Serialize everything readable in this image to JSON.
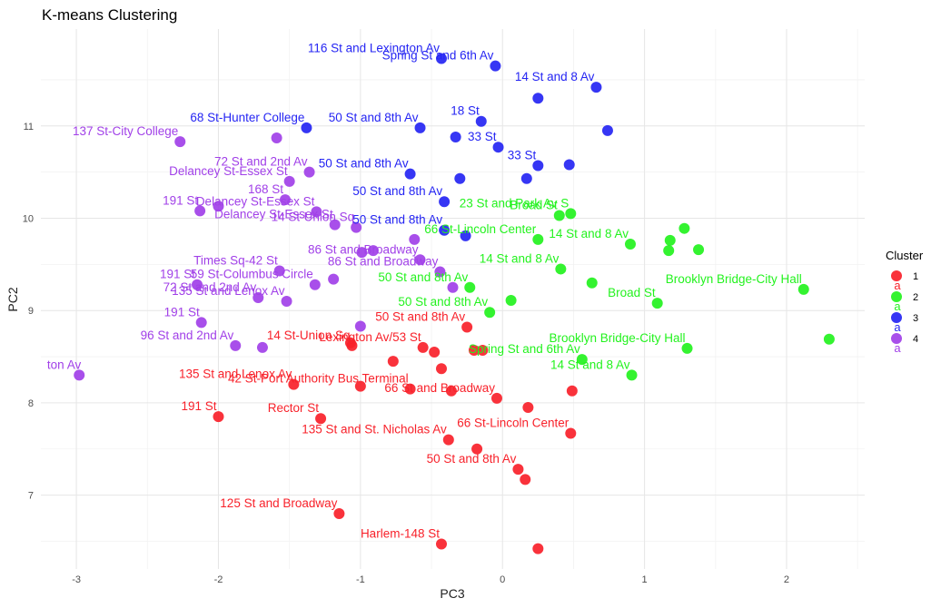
{
  "chart_data": {
    "type": "scatter",
    "title": "K-means Clustering",
    "xlabel": "PC3",
    "ylabel": "PC2",
    "xlim": [
      -3.25,
      2.55
    ],
    "ylim": [
      6.2,
      12.05
    ],
    "xticks": [
      -3,
      -2,
      -1,
      0,
      1,
      2
    ],
    "yticks": [
      7,
      8,
      9,
      10,
      11
    ],
    "grid": true,
    "legend": {
      "title": "Cluster",
      "placement": "right",
      "entries": [
        {
          "label": "1",
          "color": "#f8212a"
        },
        {
          "label": "2",
          "color": "#23f21e"
        },
        {
          "label": "3",
          "color": "#2525f3"
        },
        {
          "label": "4",
          "color": "#a140e8"
        }
      ],
      "key_text": "a"
    },
    "series": [
      {
        "name": "1",
        "color": "#f8212a",
        "points": [
          {
            "x": -2.0,
            "y": 7.85,
            "label": "191 St"
          },
          {
            "x": -1.47,
            "y": 8.2,
            "label": "135 St and Lenox Av"
          },
          {
            "x": -1.28,
            "y": 7.83,
            "label": "Rector St"
          },
          {
            "x": -1.15,
            "y": 6.8,
            "label": "125 St and Broadway"
          },
          {
            "x": -1.07,
            "y": 8.65,
            "label": ""
          },
          {
            "x": -1.06,
            "y": 8.62,
            "label": "14 St-Union Sq"
          },
          {
            "x": -1.0,
            "y": 8.18,
            "label": ""
          },
          {
            "x": -0.77,
            "y": 8.45,
            "label": ""
          },
          {
            "x": -0.65,
            "y": 8.15,
            "label": "42 St-Port Authority Bus Terminal"
          },
          {
            "x": -0.56,
            "y": 8.6,
            "label": "Lexington Av/53 St"
          },
          {
            "x": -0.48,
            "y": 8.55,
            "label": ""
          },
          {
            "x": -0.43,
            "y": 8.37,
            "label": ""
          },
          {
            "x": -0.43,
            "y": 6.47,
            "label": "Harlem-148 St"
          },
          {
            "x": -0.38,
            "y": 7.6,
            "label": "135 St and St. Nicholas Av"
          },
          {
            "x": -0.36,
            "y": 8.13,
            "label": ""
          },
          {
            "x": -0.25,
            "y": 8.82,
            "label": "50 St and 8th Av"
          },
          {
            "x": -0.2,
            "y": 8.57,
            "label": ""
          },
          {
            "x": -0.18,
            "y": 7.5,
            "label": ""
          },
          {
            "x": -0.14,
            "y": 8.57,
            "label": ""
          },
          {
            "x": -0.04,
            "y": 8.05,
            "label": "66 St and Broadway"
          },
          {
            "x": 0.11,
            "y": 7.28,
            "label": "50 St and 8th Av"
          },
          {
            "x": 0.16,
            "y": 7.17,
            "label": ""
          },
          {
            "x": 0.18,
            "y": 7.95,
            "label": ""
          },
          {
            "x": 0.25,
            "y": 6.42,
            "label": ""
          },
          {
            "x": 0.48,
            "y": 7.67,
            "label": "66 St-Lincoln Center"
          },
          {
            "x": 0.49,
            "y": 8.13,
            "label": ""
          }
        ]
      },
      {
        "name": "2",
        "color": "#23f21e",
        "points": [
          {
            "x": -0.23,
            "y": 9.25,
            "label": "50 St and 8th Av"
          },
          {
            "x": -0.09,
            "y": 8.98,
            "label": "50 St and 8th Av"
          },
          {
            "x": 0.06,
            "y": 9.11,
            "label": ""
          },
          {
            "x": 0.25,
            "y": 9.77,
            "label": "66 St-Lincoln Center"
          },
          {
            "x": 0.4,
            "y": 10.03,
            "label": "Broad St"
          },
          {
            "x": 0.41,
            "y": 9.45,
            "label": "14 St and 8 Av"
          },
          {
            "x": 0.48,
            "y": 10.05,
            "label": "23 St and Park Av S"
          },
          {
            "x": 0.56,
            "y": 8.47,
            "label": "Spring St and 6th Av"
          },
          {
            "x": 0.63,
            "y": 9.3,
            "label": ""
          },
          {
            "x": 0.9,
            "y": 9.72,
            "label": "14 St and 8 Av"
          },
          {
            "x": 0.91,
            "y": 8.3,
            "label": "14 St and 8 Av"
          },
          {
            "x": 1.09,
            "y": 9.08,
            "label": "Broad St"
          },
          {
            "x": 1.17,
            "y": 9.65,
            "label": ""
          },
          {
            "x": 1.18,
            "y": 9.76,
            "label": ""
          },
          {
            "x": 1.28,
            "y": 9.89,
            "label": ""
          },
          {
            "x": 1.3,
            "y": 8.59,
            "label": "Brooklyn Bridge-City Hall"
          },
          {
            "x": 1.38,
            "y": 9.66,
            "label": ""
          },
          {
            "x": 2.12,
            "y": 9.23,
            "label": "Brooklyn Bridge-City Hall"
          },
          {
            "x": 2.3,
            "y": 8.69,
            "label": ""
          }
        ]
      },
      {
        "name": "3",
        "color": "#2525f3",
        "points": [
          {
            "x": -1.38,
            "y": 10.98,
            "label": "68 St-Hunter College"
          },
          {
            "x": -0.65,
            "y": 10.48,
            "label": "50 St and 8th Av"
          },
          {
            "x": -0.58,
            "y": 10.98,
            "label": "50 St and 8th Av"
          },
          {
            "x": -0.43,
            "y": 11.73,
            "label": "116 St and Lexington Av"
          },
          {
            "x": -0.41,
            "y": 10.18,
            "label": "50 St and 8th Av"
          },
          {
            "x": -0.41,
            "y": 9.87,
            "label": "50 St and 8th Av"
          },
          {
            "x": -0.33,
            "y": 10.88,
            "label": ""
          },
          {
            "x": -0.3,
            "y": 10.43,
            "label": ""
          },
          {
            "x": -0.26,
            "y": 9.81,
            "label": ""
          },
          {
            "x": -0.15,
            "y": 11.05,
            "label": "18 St"
          },
          {
            "x": -0.05,
            "y": 11.65,
            "label": "Spring St and 6th Av"
          },
          {
            "x": -0.03,
            "y": 10.77,
            "label": "33 St"
          },
          {
            "x": 0.17,
            "y": 10.43,
            "label": ""
          },
          {
            "x": 0.25,
            "y": 11.3,
            "label": ""
          },
          {
            "x": 0.25,
            "y": 10.57,
            "label": "33 St"
          },
          {
            "x": 0.47,
            "y": 10.58,
            "label": ""
          },
          {
            "x": 0.66,
            "y": 11.42,
            "label": "14 St and 8 Av"
          },
          {
            "x": 0.74,
            "y": 10.95,
            "label": ""
          }
        ]
      },
      {
        "name": "4",
        "color": "#a140e8",
        "points": [
          {
            "x": -2.98,
            "y": 8.3,
            "label": "ton Av"
          },
          {
            "x": -2.27,
            "y": 10.83,
            "label": "137 St-City College"
          },
          {
            "x": -2.15,
            "y": 9.28,
            "label": "191 St"
          },
          {
            "x": -2.13,
            "y": 10.08,
            "label": "191 St"
          },
          {
            "x": -2.12,
            "y": 8.87,
            "label": "191 St"
          },
          {
            "x": -2.0,
            "y": 10.13,
            "label": ""
          },
          {
            "x": -1.88,
            "y": 8.62,
            "label": "96 St and 2nd Av"
          },
          {
            "x": -1.72,
            "y": 9.14,
            "label": "72 St and 2nd Av"
          },
          {
            "x": -1.69,
            "y": 8.6,
            "label": ""
          },
          {
            "x": -1.59,
            "y": 10.87,
            "label": ""
          },
          {
            "x": -1.57,
            "y": 9.43,
            "label": "Times Sq-42 St"
          },
          {
            "x": -1.53,
            "y": 10.2,
            "label": "168 St"
          },
          {
            "x": -1.52,
            "y": 9.1,
            "label": "135 St and Lenox Av"
          },
          {
            "x": -1.5,
            "y": 10.4,
            "label": "Delancey St-Essex St"
          },
          {
            "x": -1.31,
            "y": 10.07,
            "label": "Delancey St-Essex St"
          },
          {
            "x": -1.36,
            "y": 10.5,
            "label": "72 St and 2nd Av"
          },
          {
            "x": -1.32,
            "y": 9.28,
            "label": "59 St-Columbus Circle"
          },
          {
            "x": -1.19,
            "y": 9.34,
            "label": ""
          },
          {
            "x": -1.18,
            "y": 9.93,
            "label": "Delancey St-Essex St"
          },
          {
            "x": -1.03,
            "y": 9.9,
            "label": "14 St-Union Sq"
          },
          {
            "x": -0.99,
            "y": 9.63,
            "label": ""
          },
          {
            "x": -1.0,
            "y": 8.83,
            "label": ""
          },
          {
            "x": -0.91,
            "y": 9.65,
            "label": ""
          },
          {
            "x": -0.62,
            "y": 9.77,
            "label": ""
          },
          {
            "x": -0.58,
            "y": 9.55,
            "label": "86 St and Broadway"
          },
          {
            "x": -0.44,
            "y": 9.42,
            "label": "86 St and Broadway"
          },
          {
            "x": -0.35,
            "y": 9.25,
            "label": ""
          }
        ]
      }
    ],
    "label_layout": {}
  }
}
